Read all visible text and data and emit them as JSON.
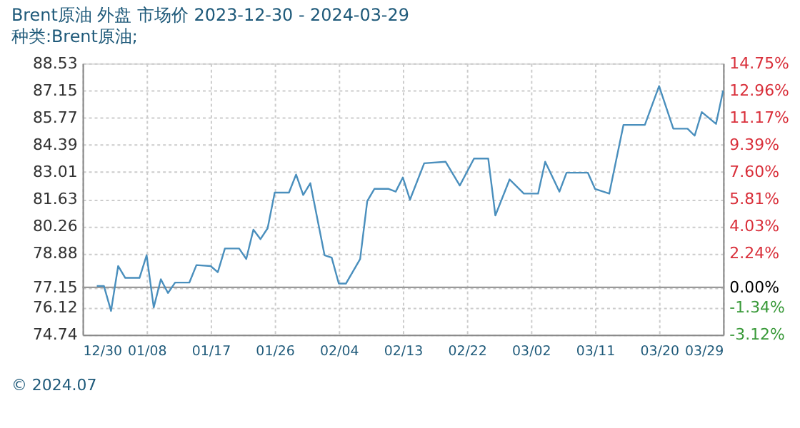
{
  "chart_data": {
    "type": "line",
    "title": "Brent原油 外盘 市场价 2023-12-30 - 2024-03-29",
    "subtitle": "种类:Brent原油;",
    "x": [
      "2024-01-01",
      "2024-01-02",
      "2024-01-03",
      "2024-01-04",
      "2024-01-05",
      "2024-01-07",
      "2024-01-08",
      "2024-01-09",
      "2024-01-10",
      "2024-01-11",
      "2024-01-12",
      "2024-01-14",
      "2024-01-15",
      "2024-01-17",
      "2024-01-18",
      "2024-01-19",
      "2024-01-21",
      "2024-01-22",
      "2024-01-23",
      "2024-01-24",
      "2024-01-25",
      "2024-01-26",
      "2024-01-28",
      "2024-01-29",
      "2024-01-30",
      "2024-01-31",
      "2024-02-02",
      "2024-02-03",
      "2024-02-04",
      "2024-02-05",
      "2024-02-07",
      "2024-02-08",
      "2024-02-09",
      "2024-02-11",
      "2024-02-12",
      "2024-02-13",
      "2024-02-14",
      "2024-02-16",
      "2024-02-19",
      "2024-02-21",
      "2024-02-23",
      "2024-02-25",
      "2024-02-26",
      "2024-02-28",
      "2024-03-01",
      "2024-03-03",
      "2024-03-04",
      "2024-03-06",
      "2024-03-07",
      "2024-03-10",
      "2024-03-11",
      "2024-03-13",
      "2024-03-15",
      "2024-03-18",
      "2024-03-20",
      "2024-03-22",
      "2024-03-24",
      "2024-03-25",
      "2024-03-26",
      "2024-03-28",
      "2024-03-29"
    ],
    "series": [
      {
        "color": "#4a8fbd",
        "values": [
          77.22,
          77.22,
          75.95,
          78.23,
          77.63,
          77.63,
          78.78,
          76.13,
          77.56,
          76.86,
          77.39,
          77.39,
          78.28,
          78.23,
          77.92,
          79.12,
          79.12,
          78.59,
          80.08,
          79.6,
          80.15,
          81.96,
          81.96,
          82.88,
          81.84,
          82.44,
          78.78,
          78.66,
          77.34,
          77.34,
          78.59,
          81.53,
          82.15,
          82.15,
          82.01,
          82.73,
          81.6,
          83.45,
          83.53,
          82.32,
          83.69,
          83.69,
          80.8,
          82.63,
          81.91,
          81.91,
          83.53,
          82.01,
          82.97,
          82.97,
          82.15,
          81.91,
          85.4,
          85.4,
          87.37,
          85.21,
          85.21,
          84.85,
          86.05,
          85.45,
          87.14
        ]
      }
    ],
    "xlim": [
      "2023-12-30",
      "2024-03-29"
    ],
    "xticks": [
      {
        "value": "2023-12-30",
        "label": "12/30"
      },
      {
        "value": "2024-01-08",
        "label": "01/08"
      },
      {
        "value": "2024-01-17",
        "label": "01/17"
      },
      {
        "value": "2024-01-26",
        "label": "01/26"
      },
      {
        "value": "2024-02-04",
        "label": "02/04"
      },
      {
        "value": "2024-02-13",
        "label": "02/13"
      },
      {
        "value": "2024-02-22",
        "label": "02/22"
      },
      {
        "value": "2024-03-02",
        "label": "03/02"
      },
      {
        "value": "2024-03-11",
        "label": "03/11"
      },
      {
        "value": "2024-03-20",
        "label": "03/20"
      },
      {
        "value": "2024-03-29",
        "label": "03/29"
      }
    ],
    "ylim": [
      74.74,
      88.53
    ],
    "yticks": [
      74.74,
      76.12,
      77.15,
      78.88,
      80.26,
      81.63,
      83.01,
      84.39,
      85.77,
      87.15,
      88.53
    ],
    "y2lim": [
      -3.12,
      14.75
    ],
    "y2ticks": [
      {
        "value": -3.12,
        "label": "-3.12%"
      },
      {
        "value": -1.34,
        "label": "-1.34%"
      },
      {
        "value": 0,
        "label": "0.00%"
      },
      {
        "value": 2.24,
        "label": "2.24%"
      },
      {
        "value": 4.03,
        "label": "4.03%"
      },
      {
        "value": 5.81,
        "label": "5.81%"
      },
      {
        "value": 7.6,
        "label": "7.60%"
      },
      {
        "value": 9.39,
        "label": "9.39%"
      },
      {
        "value": 11.17,
        "label": "11.17%"
      },
      {
        "value": 12.96,
        "label": "12.96%"
      },
      {
        "value": 14.75,
        "label": "14.75%"
      }
    ],
    "ref_lines": [
      {
        "axis": "y2",
        "value": 0,
        "color": "#999999"
      }
    ],
    "grid": true,
    "marker": "none",
    "line_style": "solid",
    "annotations": [
      "© 2024.07"
    ]
  }
}
